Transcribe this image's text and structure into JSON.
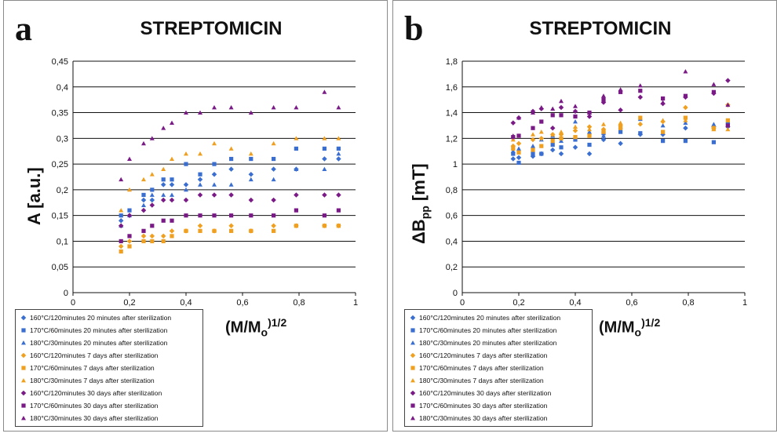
{
  "legend_entries": [
    {
      "label": "160°C/120minutes 20 minutes after sterilization",
      "color": "#3a6fd1",
      "marker": "diamond"
    },
    {
      "label": "170°C/60minutes 20 minutes after sterilization",
      "color": "#3a6fd1",
      "marker": "square"
    },
    {
      "label": "180°C/30minutes 20 minutes after sterilization",
      "color": "#3a6fd1",
      "marker": "triangle"
    },
    {
      "label": "160°C/120minutes 7 days after sterilization",
      "color": "#f0a020",
      "marker": "diamond"
    },
    {
      "label": "170°C/60minutes 7 days after sterilization",
      "color": "#f0a020",
      "marker": "square"
    },
    {
      "label": "180°C/30minutes 7 days after sterilization",
      "color": "#f0a020",
      "marker": "triangle"
    },
    {
      "label": "160°C/120minutes 30 days after sterilization",
      "color": "#7a1a86",
      "marker": "diamond"
    },
    {
      "label": "170°C/60minutes 30 days after sterilization",
      "color": "#7a1a86",
      "marker": "square"
    },
    {
      "label": "180°C/30minutes 30 days after sterilization",
      "color": "#7a1a86",
      "marker": "triangle"
    }
  ],
  "chart_data": [
    {
      "type": "scatter",
      "panel_letter": "a",
      "title": "STREPTOMICIN",
      "ylabel_main": "A [a.u.]",
      "xlabel_main": "(M/M",
      "xlabel_sub": "o",
      "xlabel_sup": ")1/2",
      "xlim": [
        0,
        1
      ],
      "ylim": [
        0,
        0.45
      ],
      "xticks": [
        "0",
        "0,2",
        "0,4",
        "0,6",
        "0,8",
        "1"
      ],
      "yticks": [
        "0",
        "0,05",
        "0,1",
        "0,15",
        "0,2",
        "0,25",
        "0,3",
        "0,35",
        "0,4",
        "0,45"
      ],
      "grid": "horizontal",
      "legend_position": "bottom-left",
      "x": [
        0.17,
        0.2,
        0.25,
        0.28,
        0.32,
        0.35,
        0.4,
        0.45,
        0.5,
        0.56,
        0.63,
        0.71,
        0.79,
        0.89,
        0.94
      ],
      "series": [
        {
          "name": "160°C/120minutes 20 minutes after sterilization",
          "values": [
            0.14,
            0.15,
            0.18,
            0.18,
            0.21,
            0.21,
            0.21,
            0.22,
            0.23,
            0.24,
            0.23,
            0.24,
            0.24,
            0.26,
            0.26
          ]
        },
        {
          "name": "170°C/60minutes 20 minutes after sterilization",
          "values": [
            0.15,
            0.16,
            0.19,
            0.2,
            0.22,
            0.22,
            0.25,
            0.23,
            0.25,
            0.26,
            0.26,
            0.26,
            0.28,
            0.28,
            0.28
          ]
        },
        {
          "name": "180°C/30minutes 20 minutes after sterilization",
          "values": [
            0.13,
            0.15,
            0.17,
            0.19,
            0.19,
            0.19,
            0.2,
            0.21,
            0.21,
            0.21,
            0.22,
            0.22,
            0.24,
            0.24,
            0.27
          ]
        },
        {
          "name": "160°C/120minutes 7 days after sterilization",
          "values": [
            0.09,
            0.1,
            0.11,
            0.11,
            0.11,
            0.12,
            0.12,
            0.13,
            0.12,
            0.13,
            0.12,
            0.13,
            0.13,
            0.13,
            0.13
          ]
        },
        {
          "name": "170°C/60minutes 7 days after sterilization",
          "values": [
            0.08,
            0.09,
            0.1,
            0.1,
            0.1,
            0.11,
            0.12,
            0.12,
            0.12,
            0.12,
            0.12,
            0.12,
            0.13,
            0.13,
            0.13
          ]
        },
        {
          "name": "180°C/30minutes 7 days after sterilization",
          "values": [
            0.16,
            0.2,
            0.22,
            0.23,
            0.24,
            0.26,
            0.27,
            0.27,
            0.29,
            0.28,
            0.27,
            0.29,
            0.3,
            0.3,
            0.3
          ]
        },
        {
          "name": "160°C/120minutes 30 days after sterilization",
          "values": [
            0.13,
            0.15,
            0.16,
            0.17,
            0.18,
            0.18,
            0.18,
            0.19,
            0.19,
            0.19,
            0.18,
            0.18,
            0.19,
            0.19,
            0.19
          ]
        },
        {
          "name": "170°C/60minutes 30 days after sterilization",
          "values": [
            0.1,
            0.11,
            0.12,
            0.13,
            0.14,
            0.14,
            0.15,
            0.15,
            0.15,
            0.15,
            0.15,
            0.15,
            0.16,
            0.15,
            0.16
          ]
        },
        {
          "name": "180°C/30minutes 30 days after sterilization",
          "values": [
            0.22,
            0.26,
            0.29,
            0.3,
            0.32,
            0.33,
            0.35,
            0.35,
            0.36,
            0.36,
            0.35,
            0.36,
            0.36,
            0.39,
            0.36
          ]
        }
      ]
    },
    {
      "type": "scatter",
      "panel_letter": "b",
      "title": "STREPTOMICIN",
      "ylabel_main": "ΔB",
      "ylabel_sub": "pp",
      "ylabel_unit": " [mT]",
      "xlabel_main": "(M/M",
      "xlabel_sub": "o",
      "xlabel_sup": ")1/2",
      "xlim": [
        0,
        1
      ],
      "ylim": [
        0,
        1.8
      ],
      "xticks": [
        "0",
        "0,2",
        "0,4",
        "0,6",
        "0,8",
        "1"
      ],
      "yticks": [
        "0",
        "0,2",
        "0,4",
        "0,6",
        "0,8",
        "1",
        "1,2",
        "1,4",
        "1,6",
        "1,8"
      ],
      "grid": "horizontal",
      "legend_position": "bottom-left",
      "x": [
        0.18,
        0.2,
        0.25,
        0.28,
        0.32,
        0.35,
        0.4,
        0.45,
        0.5,
        0.56,
        0.63,
        0.71,
        0.79,
        0.89,
        0.94
      ],
      "series": [
        {
          "name": "160°C/120minutes 20 minutes after sterilization",
          "values": [
            1.04,
            1.05,
            1.06,
            1.08,
            1.11,
            1.08,
            1.13,
            1.08,
            1.19,
            1.16,
            1.23,
            1.23,
            1.28,
            1.29,
            1.29
          ]
        },
        {
          "name": "170°C/60minutes 20 minutes after sterilization",
          "values": [
            1.08,
            1.01,
            1.08,
            1.08,
            1.15,
            1.13,
            1.19,
            1.15,
            1.24,
            1.25,
            1.24,
            1.18,
            1.18,
            1.17,
            1.31
          ]
        },
        {
          "name": "180°C/30minutes 20 minutes after sterilization",
          "values": [
            1.1,
            1.12,
            1.14,
            1.19,
            1.22,
            1.18,
            1.33,
            1.25,
            1.22,
            1.29,
            1.35,
            1.3,
            1.32,
            1.31,
            1.33
          ]
        },
        {
          "name": "160°C/120minutes 7 days after sterilization",
          "values": [
            1.14,
            1.16,
            1.19,
            1.2,
            1.23,
            1.23,
            1.26,
            1.29,
            1.27,
            1.3,
            1.31,
            1.33,
            1.44,
            1.28,
            1.46
          ]
        },
        {
          "name": "170°C/60minutes 7 days after sterilization",
          "values": [
            1.12,
            1.09,
            1.11,
            1.14,
            1.18,
            1.2,
            1.21,
            1.22,
            1.25,
            1.28,
            1.36,
            1.25,
            1.36,
            1.28,
            1.34
          ]
        },
        {
          "name": "180°C/30minutes 7 days after sterilization",
          "values": [
            1.19,
            1.22,
            1.23,
            1.25,
            1.23,
            1.25,
            1.29,
            1.27,
            1.31,
            1.32,
            1.36,
            1.34,
            1.34,
            1.27,
            1.27
          ]
        },
        {
          "name": "160°C/120minutes 30 days after sterilization",
          "values": [
            1.32,
            1.36,
            1.41,
            1.43,
            1.28,
            1.44,
            1.41,
            1.37,
            1.48,
            1.42,
            1.52,
            1.47,
            1.52,
            1.55,
            1.65
          ]
        },
        {
          "name": "170°C/60minutes 30 days after sterilization",
          "values": [
            1.21,
            1.22,
            1.28,
            1.33,
            1.38,
            1.38,
            1.37,
            1.4,
            1.5,
            1.56,
            1.57,
            1.51,
            1.53,
            1.56,
            1.3
          ]
        },
        {
          "name": "180°C/30minutes 30 days after sterilization",
          "values": [
            1.22,
            1.36,
            1.4,
            1.44,
            1.43,
            1.49,
            1.45,
            1.4,
            1.53,
            1.58,
            1.61,
            1.48,
            1.72,
            1.62,
            1.46
          ]
        }
      ]
    }
  ]
}
